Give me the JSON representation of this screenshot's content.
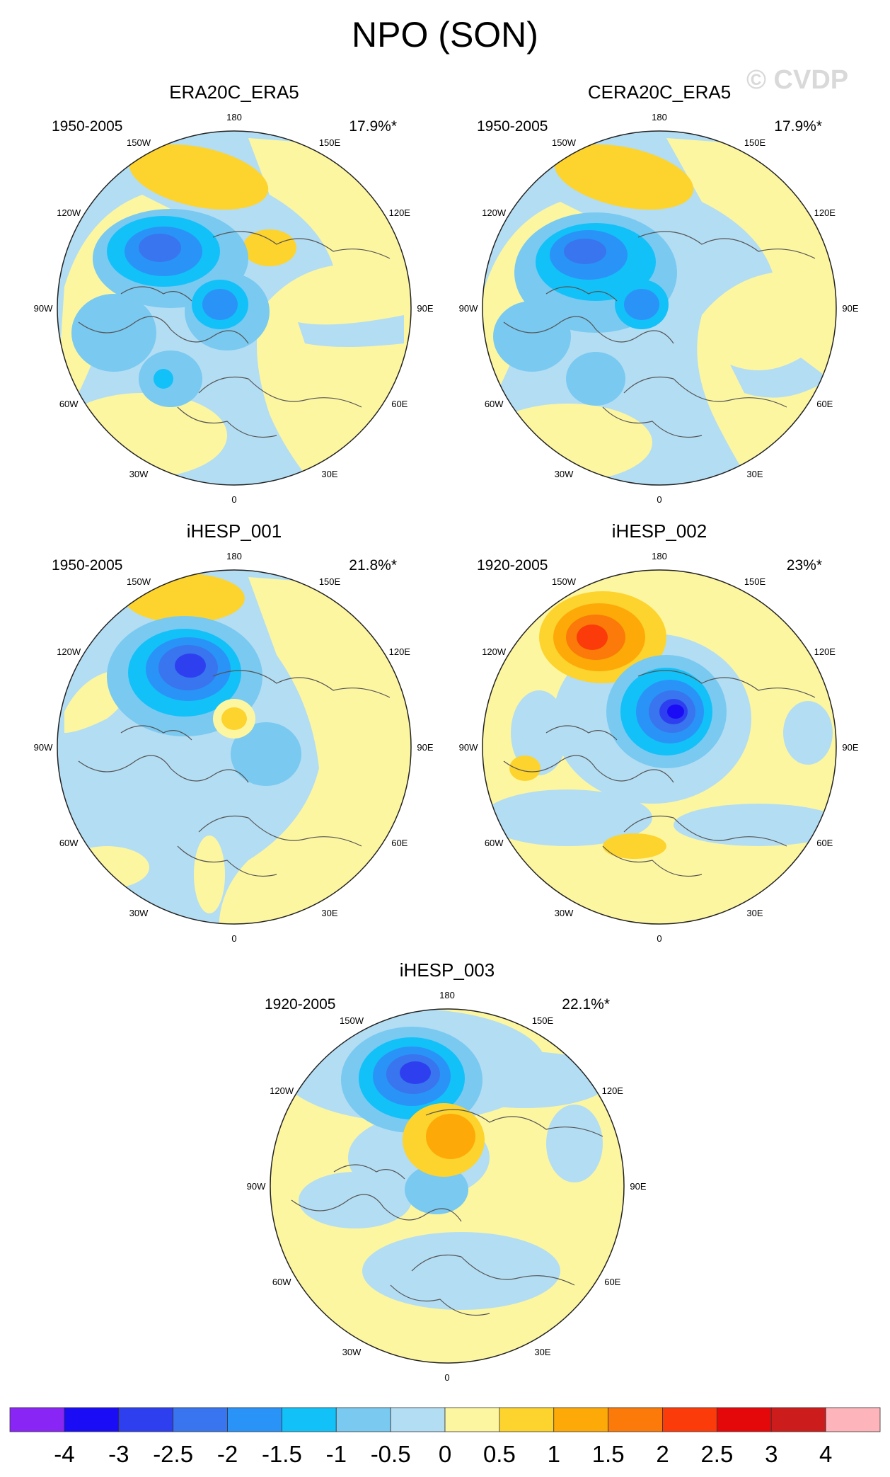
{
  "title": "NPO (SON)",
  "watermark": "© CVDP",
  "panels": [
    {
      "name": "ERA20C_ERA5",
      "period": "1950-2005",
      "percent": "17.9%*"
    },
    {
      "name": "CERA20C_ERA5",
      "period": "1950-2005",
      "percent": "17.9%*"
    },
    {
      "name": "iHESP_001",
      "period": "1950-2005",
      "percent": "21.8%*"
    },
    {
      "name": "iHESP_002",
      "period": "1920-2005",
      "percent": "23%*"
    },
    {
      "name": "iHESP_003",
      "period": "1920-2005",
      "percent": "22.1%*"
    }
  ],
  "longitude_labels": [
    "180",
    "150E",
    "120E",
    "90E",
    "60E",
    "30E",
    "0",
    "30W",
    "60W",
    "90W",
    "120W",
    "150W"
  ],
  "colorbar": {
    "labels": [
      "-4",
      "-3",
      "-2.5",
      "-2",
      "-1.5",
      "-1",
      "-0.5",
      "0",
      "0.5",
      "1",
      "1.5",
      "2",
      "2.5",
      "3",
      "4"
    ],
    "colors": [
      "#8a26f5",
      "#1a0df5",
      "#2e3ff0",
      "#3875ee",
      "#2a93f7",
      "#12c1f8",
      "#79c9f1",
      "#b3ddf3",
      "#fdf6a1",
      "#fdd32e",
      "#fdaa08",
      "#fb7a09",
      "#fb3b09",
      "#e5080b",
      "#cd1c1c",
      "#fdb5bb"
    ]
  }
}
